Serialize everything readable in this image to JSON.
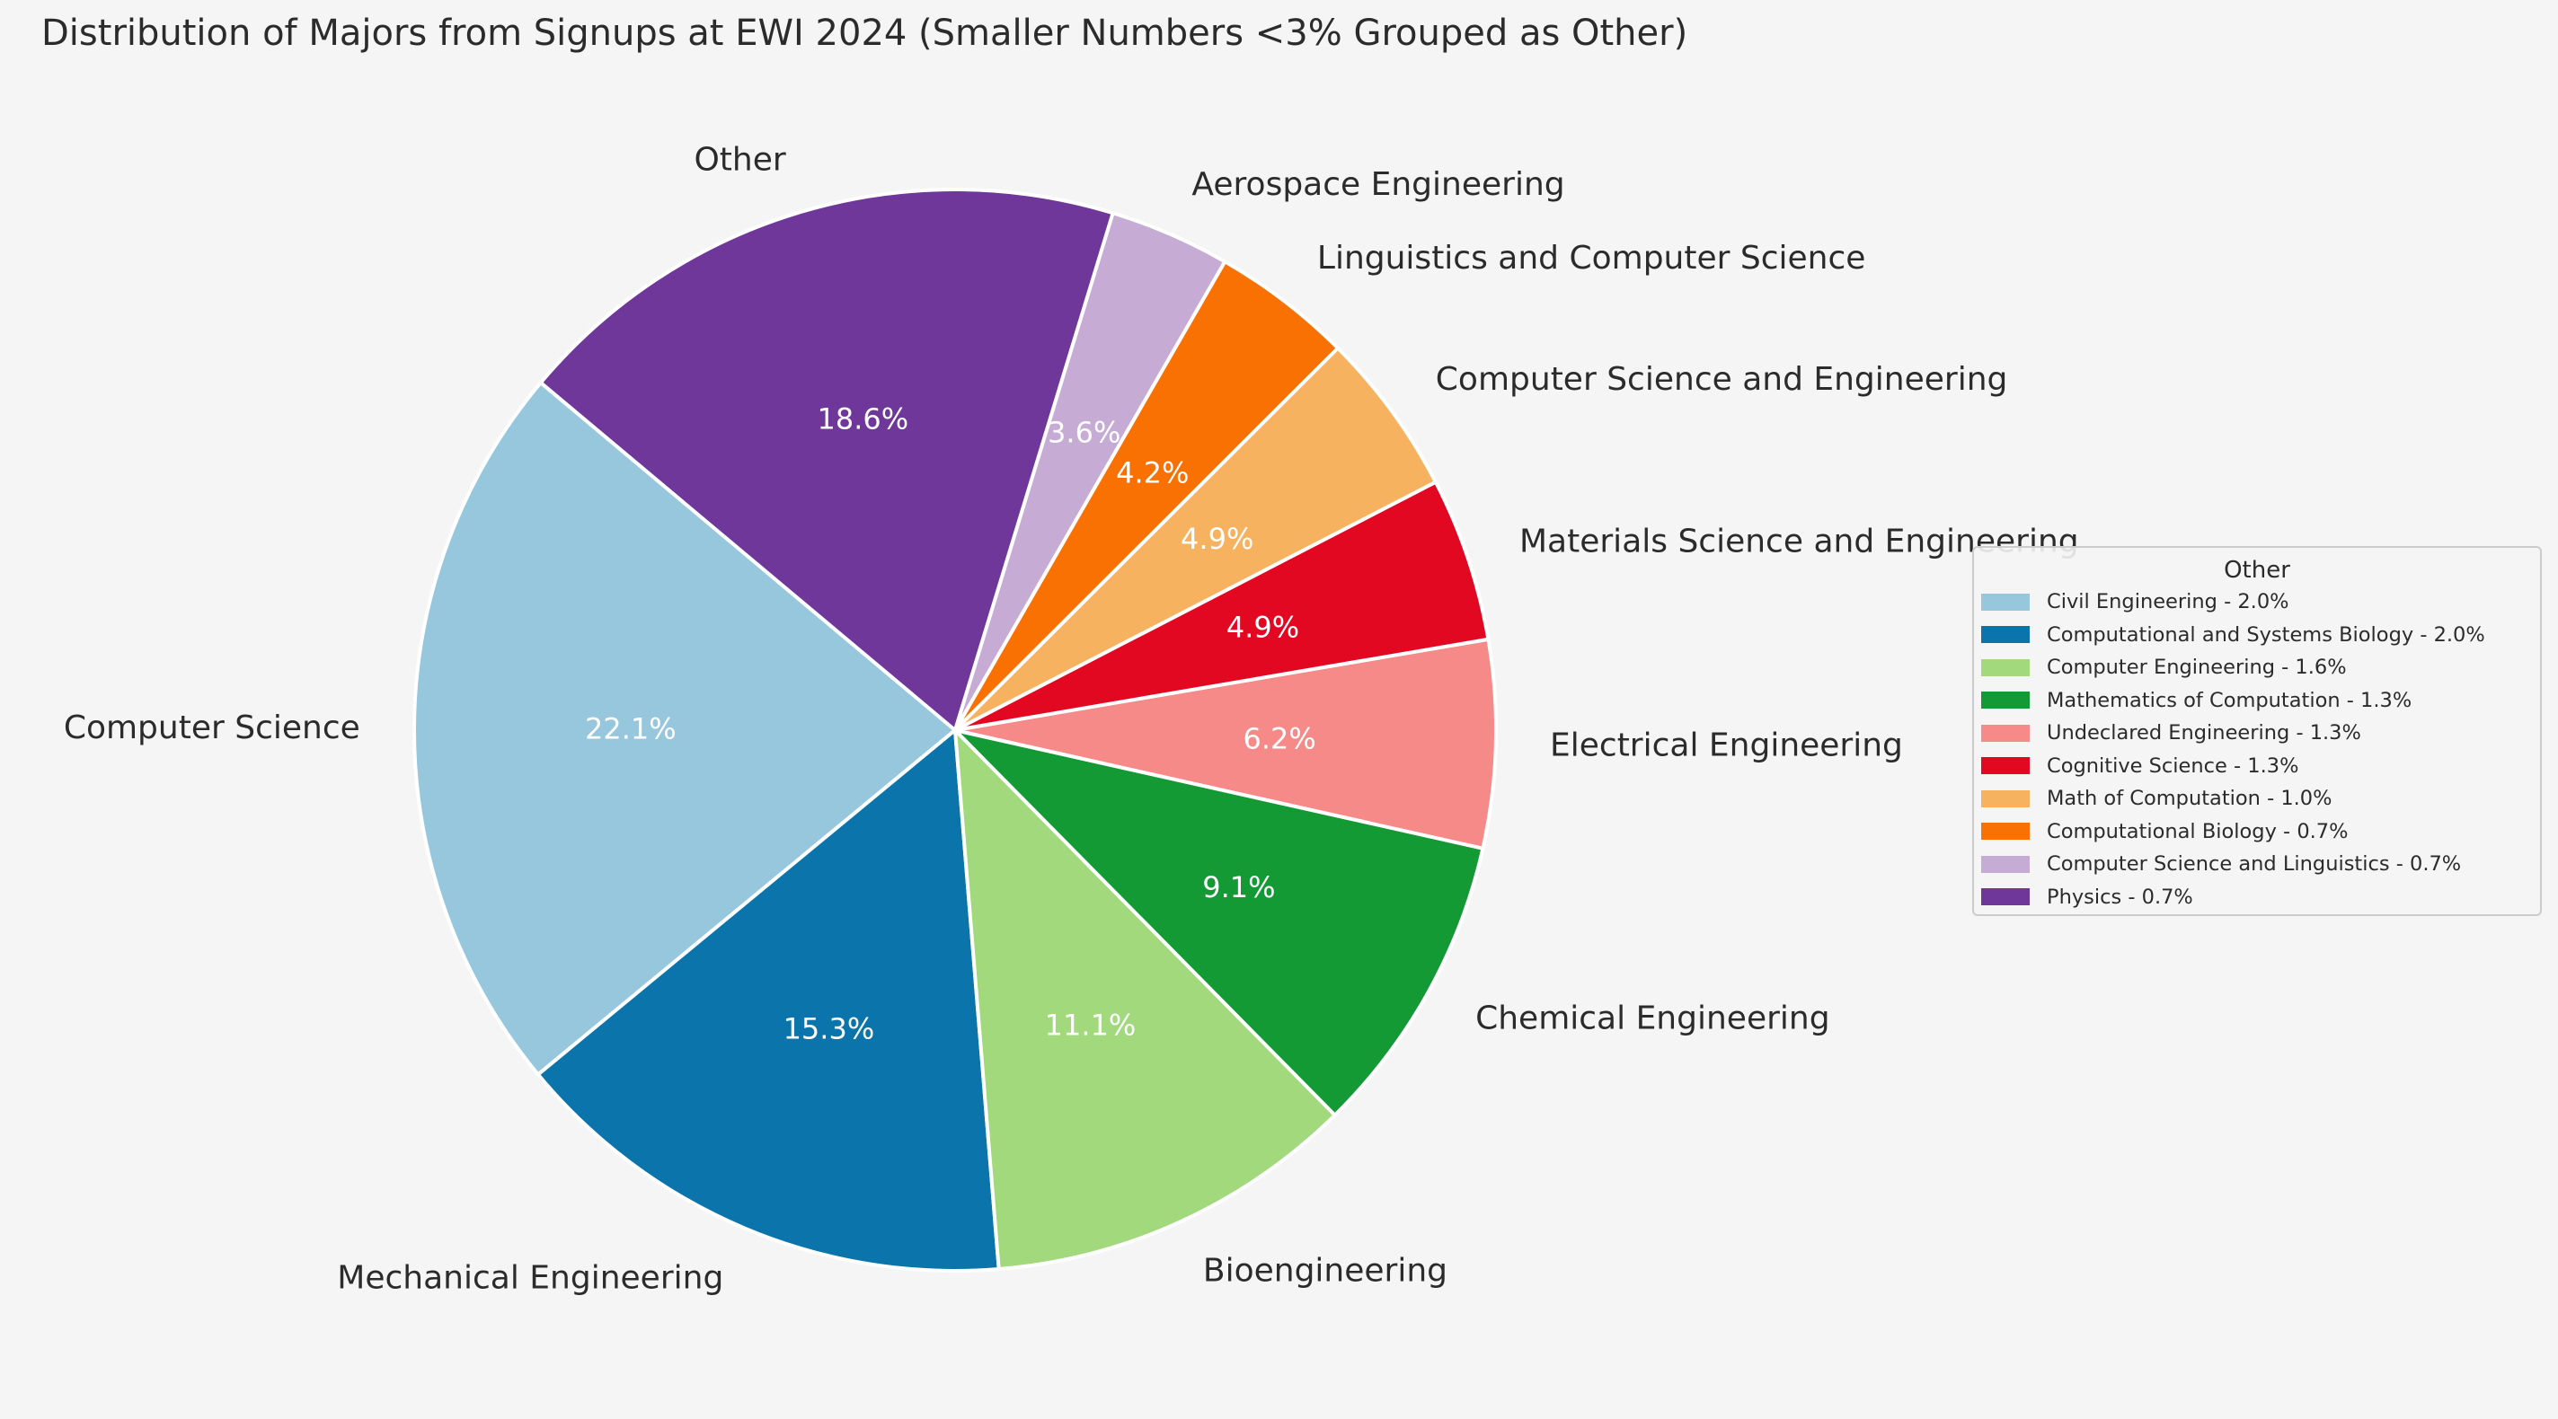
{
  "chart_data": {
    "type": "pie",
    "title": "Distribution of Majors from Signups at EWI 2024 (Smaller Numbers <3% Grouped as Other)",
    "start_angle_deg": 140,
    "direction": "counterclockwise",
    "slices": [
      {
        "label": "Computer Science",
        "value": 22.1,
        "pct_label": "22.1%",
        "color": "#97c7dc"
      },
      {
        "label": "Mechanical Engineering",
        "value": 15.3,
        "pct_label": "15.3%",
        "color": "#0b74ab"
      },
      {
        "label": "Bioengineering",
        "value": 11.1,
        "pct_label": "11.1%",
        "color": "#a2d97c"
      },
      {
        "label": "Chemical Engineering",
        "value": 9.1,
        "pct_label": "9.1%",
        "color": "#139a35"
      },
      {
        "label": "Electrical Engineering",
        "value": 6.2,
        "pct_label": "6.2%",
        "color": "#f68a89"
      },
      {
        "label": "Materials Science and Engineering",
        "value": 4.9,
        "pct_label": "4.9%",
        "color": "#e20822"
      },
      {
        "label": "Computer Science and Engineering",
        "value": 4.9,
        "pct_label": "4.9%",
        "color": "#f7b25f"
      },
      {
        "label": "Linguistics and Computer Science",
        "value": 4.2,
        "pct_label": "4.2%",
        "color": "#f87102"
      },
      {
        "label": "Aerospace Engineering",
        "value": 3.6,
        "pct_label": "3.6%",
        "color": "#c6abd4"
      },
      {
        "label": "Other",
        "value": 18.6,
        "pct_label": "18.6%",
        "color": "#6e3799"
      }
    ],
    "legend": {
      "title": "Other",
      "placement": "right",
      "items": [
        {
          "label": "Civil Engineering - 2.0%",
          "color": "#97c7dc"
        },
        {
          "label": "Computational and Systems Biology - 2.0%",
          "color": "#0b74ab"
        },
        {
          "label": "Computer Engineering - 1.6%",
          "color": "#a2d97c"
        },
        {
          "label": "Mathematics of Computation - 1.3%",
          "color": "#139a35"
        },
        {
          "label": "Undeclared Engineering - 1.3%",
          "color": "#f68a89"
        },
        {
          "label": "Cognitive Science - 1.3%",
          "color": "#e20822"
        },
        {
          "label": "Math of Computation - 1.0%",
          "color": "#f7b25f"
        },
        {
          "label": "Computational Biology - 0.7%",
          "color": "#f87102"
        },
        {
          "label": "Computer Science and Linguistics - 0.7%",
          "color": "#c6abd4"
        },
        {
          "label": "Physics - 0.7%",
          "color": "#6e3799"
        }
      ]
    }
  }
}
